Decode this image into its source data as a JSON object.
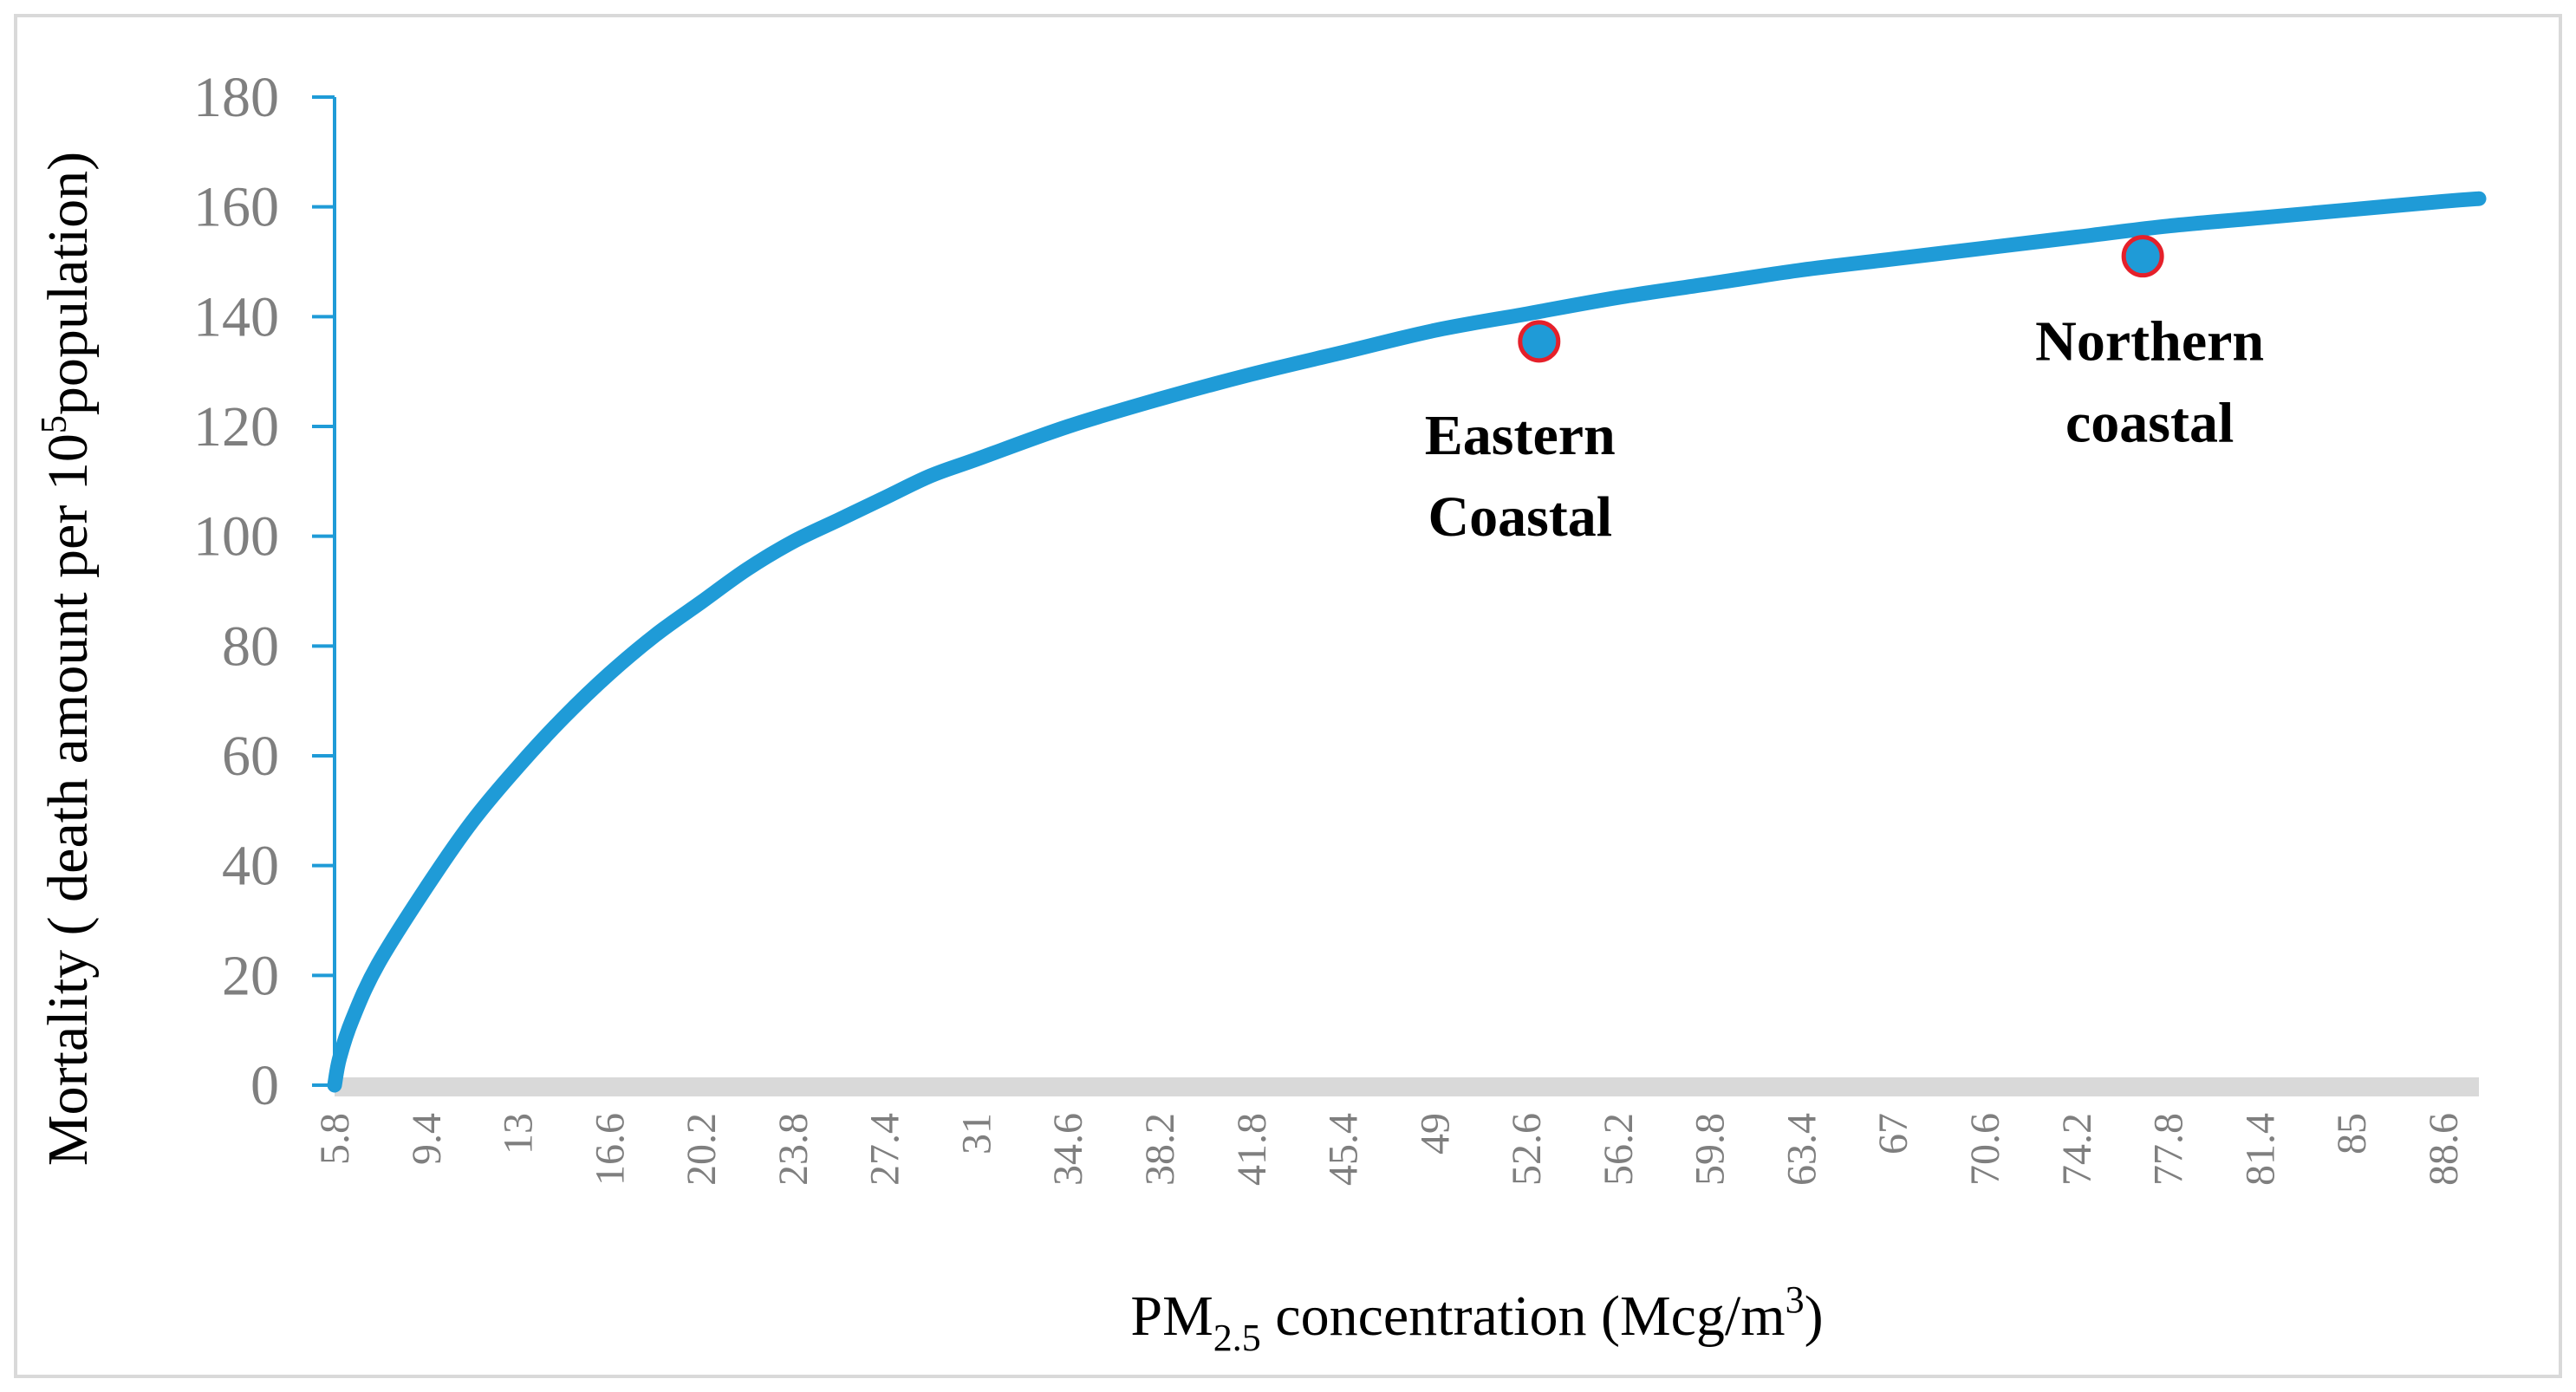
{
  "chart_data": {
    "type": "line",
    "title": "",
    "xlabel": {
      "base": "PM",
      "sub": "2.5",
      "mid": " concentration (Mcg/m",
      "sup": "3",
      "end": ")"
    },
    "ylabel": {
      "pre": "Mortality ( death amount per 10",
      "sup": "5",
      "post": "population)"
    },
    "x_ticks": [
      "5.8",
      "9.4",
      "13",
      "16.6",
      "20.2",
      "23.8",
      "27.4",
      "31",
      "34.6",
      "38.2",
      "41.8",
      "45.4",
      "49",
      "52.6",
      "56.2",
      "59.8",
      "63.4",
      "67",
      "70.6",
      "74.2",
      "77.8",
      "81.4",
      "85",
      "88.6"
    ],
    "y_ticks": [
      "0",
      "20",
      "40",
      "60",
      "80",
      "100",
      "120",
      "140",
      "160",
      "180"
    ],
    "xlim": [
      5.8,
      90.0
    ],
    "ylim": [
      0,
      180
    ],
    "grid": false,
    "series": [
      {
        "name": "Mortality",
        "color": "#1f9bd7",
        "x": [
          5.8,
          6.0,
          6.5,
          7.5,
          9.4,
          11.2,
          13,
          14.8,
          16.6,
          18.4,
          20.2,
          22.0,
          23.8,
          25.6,
          27.4,
          29.2,
          31,
          34.6,
          38.2,
          41.8,
          45.4,
          49,
          52.6,
          56.2,
          59.8,
          63.4,
          67,
          70.6,
          74.2,
          77.8,
          81.4,
          85,
          88.6,
          90.0
        ],
        "values": [
          0,
          5,
          12,
          22,
          36,
          48,
          58,
          67,
          75,
          82,
          88,
          94,
          99,
          103,
          107,
          111,
          114,
          120,
          125,
          129.5,
          133.5,
          137.5,
          140.5,
          143.5,
          146,
          148.5,
          150.5,
          152.5,
          154.5,
          156.5,
          158,
          159.5,
          161,
          161.5
        ]
      }
    ],
    "highlights": [
      {
        "label_lines": [
          "Eastern",
          "Coastal"
        ],
        "x": 53.1,
        "y": 135.5
      },
      {
        "label_lines": [
          "Northern",
          "coastal"
        ],
        "x": 76.8,
        "y": 151
      }
    ],
    "colors": {
      "line": "#1f9bd7",
      "marker_fill": "#1f9bd7",
      "marker_stroke": "#e5202a",
      "y_axis": "#1f9bd7",
      "x_axis_band": "#d9d9d9",
      "frame": "#d9d9d9",
      "tick_text": "#7f7f7f"
    }
  }
}
